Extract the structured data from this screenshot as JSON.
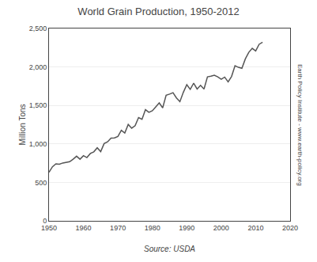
{
  "chart_data": {
    "type": "line",
    "title": "World Grain Production, 1950-2012",
    "ylabel": "Million Tons",
    "y2label": "Earth Policy Institute - www.earth-policy.org",
    "source": "Source: USDA",
    "color": "#555555",
    "grid": true,
    "xlim": [
      1950,
      2020
    ],
    "ylim": [
      0,
      2500
    ],
    "xticks": [
      1950,
      1960,
      1970,
      1980,
      1990,
      2000,
      2010,
      2020
    ],
    "yticks": [
      0,
      500,
      {
        "value": 1000,
        "label": "1,000"
      },
      {
        "value": 1500,
        "label": "1,500"
      },
      {
        "value": 2000,
        "label": "2,000"
      },
      {
        "value": 2500,
        "label": "2,500"
      }
    ],
    "x": [
      1950,
      1951,
      1952,
      1953,
      1954,
      1955,
      1956,
      1957,
      1958,
      1959,
      1960,
      1961,
      1962,
      1963,
      1964,
      1965,
      1966,
      1967,
      1968,
      1969,
      1970,
      1971,
      1972,
      1973,
      1974,
      1975,
      1976,
      1977,
      1978,
      1979,
      1980,
      1981,
      1982,
      1983,
      1984,
      1985,
      1986,
      1987,
      1988,
      1989,
      1990,
      1991,
      1992,
      1993,
      1994,
      1995,
      1996,
      1997,
      1998,
      1999,
      2000,
      2001,
      2002,
      2003,
      2004,
      2005,
      2006,
      2007,
      2008,
      2009,
      2010,
      2011,
      2012
    ],
    "values": [
      631,
      703,
      741,
      735,
      752,
      759,
      768,
      802,
      840,
      801,
      847,
      822,
      875,
      897,
      949,
      899,
      1004,
      1027,
      1075,
      1078,
      1096,
      1177,
      1141,
      1253,
      1204,
      1237,
      1342,
      1319,
      1445,
      1411,
      1430,
      1482,
      1533,
      1469,
      1632,
      1647,
      1665,
      1597,
      1549,
      1671,
      1769,
      1708,
      1790,
      1713,
      1761,
      1713,
      1872,
      1880,
      1893,
      1871,
      1840,
      1868,
      1807,
      1877,
      2016,
      1995,
      1983,
      2105,
      2190,
      2242,
      2208,
      2295,
      2321
    ]
  }
}
